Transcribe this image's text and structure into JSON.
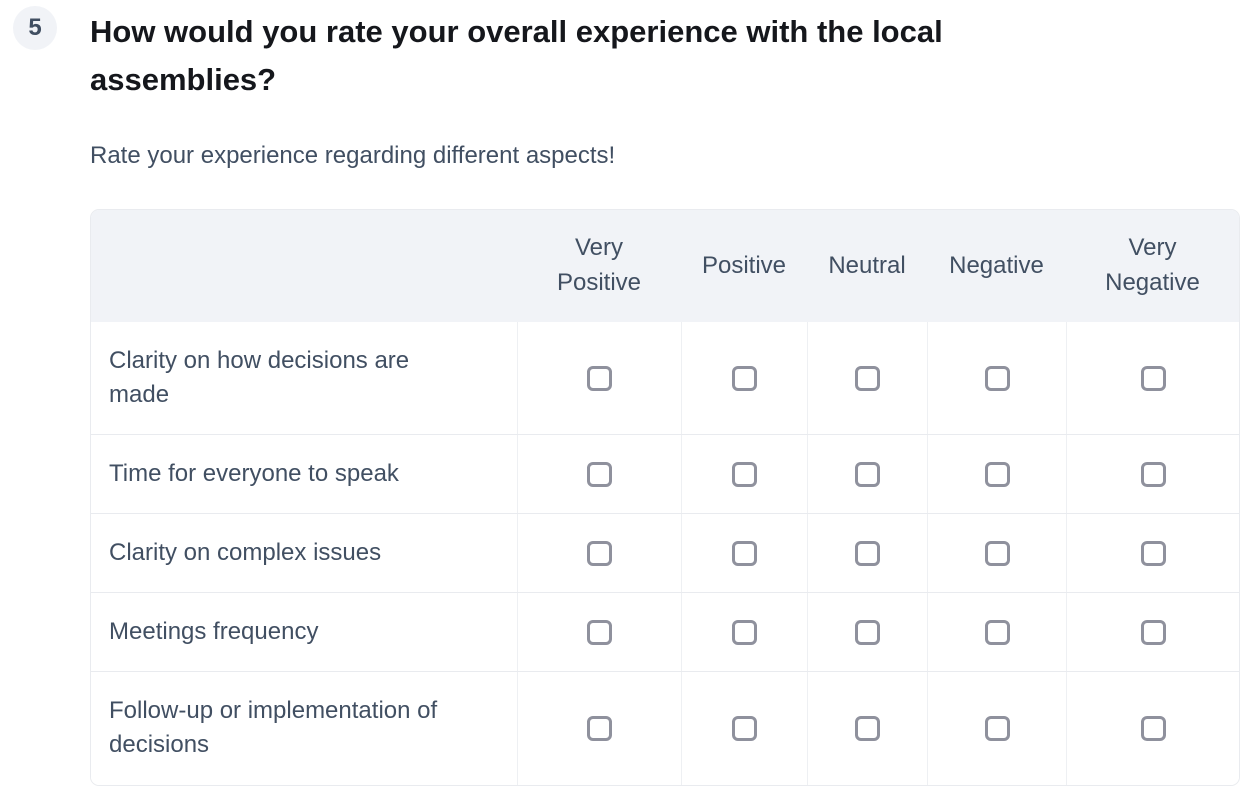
{
  "question": {
    "number": "5",
    "title": "How would you rate your overall experience with the local assemblies?",
    "subtitle": "Rate your experience regarding different aspects!"
  },
  "matrix": {
    "columns": [
      "Very Positive",
      "Positive",
      "Neutral",
      "Negative",
      "Very Negative"
    ],
    "rows": [
      "Clarity on how decisions are made",
      "Time for everyone to speak",
      "Clarity on complex issues",
      "Meetings frequency",
      "Follow-up or implementation of decisions"
    ],
    "checkbox_state": "unchecked"
  },
  "colors": {
    "header_background": "#f1f3f7",
    "badge_background": "#f1f3f7",
    "text_slate": "#414f62",
    "title_text": "#15171c",
    "checkbox_border": "#8f919d",
    "table_border": "#e9ebef"
  }
}
